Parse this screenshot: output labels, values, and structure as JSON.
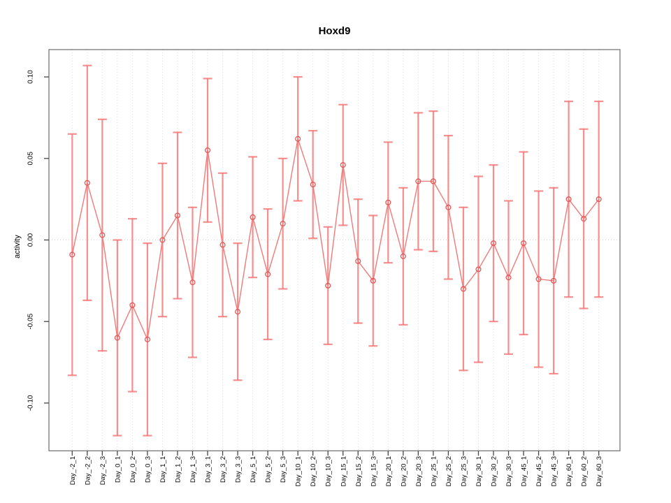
{
  "title": "Hoxd9",
  "chart_data": {
    "type": "line",
    "title": "Hoxd9",
    "xlabel": "",
    "ylabel": "activity",
    "legend": "none",
    "grid": "vertical dotted gridline at every category; horizontal dotted gridline at 0 only",
    "point_style": "open red circles connected by red line segments, symmetric error bars with caps",
    "ylim": [
      -0.129,
      0.117
    ],
    "yticks": [
      0.1,
      0.05,
      0.0,
      -0.05,
      -0.1
    ],
    "ytick_labels": [
      "0.10",
      "0.05",
      "0.00",
      "-0.05",
      "-0.10"
    ],
    "categories": [
      "Day_-2_1",
      "Day_-2_2",
      "Day_-2_3",
      "Day_0_1",
      "Day_0_2",
      "Day_0_3",
      "Day_1_1",
      "Day_1_2",
      "Day_1_3",
      "Day_3_1",
      "Day_3_2",
      "Day_3_3",
      "Day_5_1",
      "Day_5_2",
      "Day_5_3",
      "Day_10_1",
      "Day_10_2",
      "Day_10_3",
      "Day_15_1",
      "Day_15_2",
      "Day_15_3",
      "Day_20_1",
      "Day_20_2",
      "Day_20_3",
      "Day_25_1",
      "Day_25_2",
      "Day_25_3",
      "Day_30_1",
      "Day_30_2",
      "Day_30_3",
      "Day_45_1",
      "Day_45_2",
      "Day_45_3",
      "Day_60_1",
      "Day_60_2",
      "Day_60_3"
    ],
    "series": [
      {
        "name": "activity",
        "values": [
          -0.009,
          0.035,
          0.003,
          -0.06,
          -0.04,
          -0.061,
          0.0,
          0.015,
          -0.026,
          0.055,
          -0.003,
          -0.044,
          0.014,
          -0.021,
          0.01,
          0.062,
          0.034,
          -0.028,
          0.046,
          -0.013,
          -0.025,
          0.023,
          -0.01,
          0.036,
          0.036,
          0.02,
          -0.03,
          -0.018,
          -0.002,
          -0.023,
          -0.002,
          -0.024,
          -0.025,
          0.025,
          0.013,
          0.025
        ],
        "errors": [
          0.074,
          0.072,
          0.071,
          0.06,
          0.053,
          0.059,
          0.047,
          0.051,
          0.046,
          0.044,
          0.044,
          0.042,
          0.037,
          0.04,
          0.04,
          0.038,
          0.033,
          0.036,
          0.037,
          0.038,
          0.04,
          0.037,
          0.042,
          0.042,
          0.043,
          0.044,
          0.05,
          0.057,
          0.048,
          0.047,
          0.056,
          0.054,
          0.057,
          0.06,
          0.055,
          0.06
        ]
      }
    ],
    "colors": {
      "error_bar": "rgba(245,115,115,0.80)",
      "line": "#ef7a7a",
      "point": "#e05858",
      "gridline": "#dcdcdc",
      "box": "#777777",
      "tick": "#444444",
      "text": "#000000"
    }
  }
}
